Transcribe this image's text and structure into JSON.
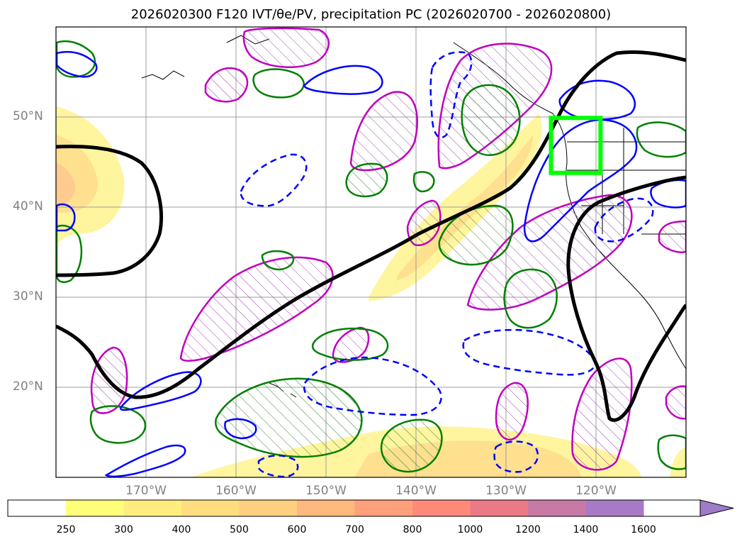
{
  "title": "2026020300 F120 IVT/θe/PV, precipitation PC (2026020700 - 2026020800)",
  "map": {
    "extent_lon": [
      -180,
      -110
    ],
    "extent_lat": [
      10,
      60
    ],
    "lat_labels": [
      "50°N",
      "40°N",
      "30°N",
      "20°N"
    ],
    "lat_values": [
      50,
      40,
      30,
      20
    ],
    "lon_labels": [
      "170°W",
      "160°W",
      "150°W",
      "140°W",
      "130°W",
      "120°W"
    ],
    "lon_values": [
      -170,
      -160,
      -150,
      -140,
      -130,
      -120
    ],
    "highlight_box": {
      "lon": [
        -125,
        -119.5
      ],
      "lat": [
        43.8,
        49.9
      ],
      "color": "#00ff00"
    },
    "colors": {
      "theta_e_contour": "#000000",
      "pv_contour": "#0000ff",
      "precip_pc_contour": "#008000",
      "hatched_region": "#bf00bf"
    }
  },
  "colorbar": {
    "labels": [
      "250",
      "300",
      "400",
      "500",
      "600",
      "700",
      "800",
      "1000",
      "1200",
      "1400",
      "1600"
    ],
    "colors": [
      "#ffff7a",
      "#ffee7d",
      "#ffde7f",
      "#ffcf80",
      "#ffb87e",
      "#ffa07c",
      "#ff8a7a",
      "#ec7a86",
      "#c87aa6",
      "#a77ac6"
    ],
    "extend": "max"
  }
}
